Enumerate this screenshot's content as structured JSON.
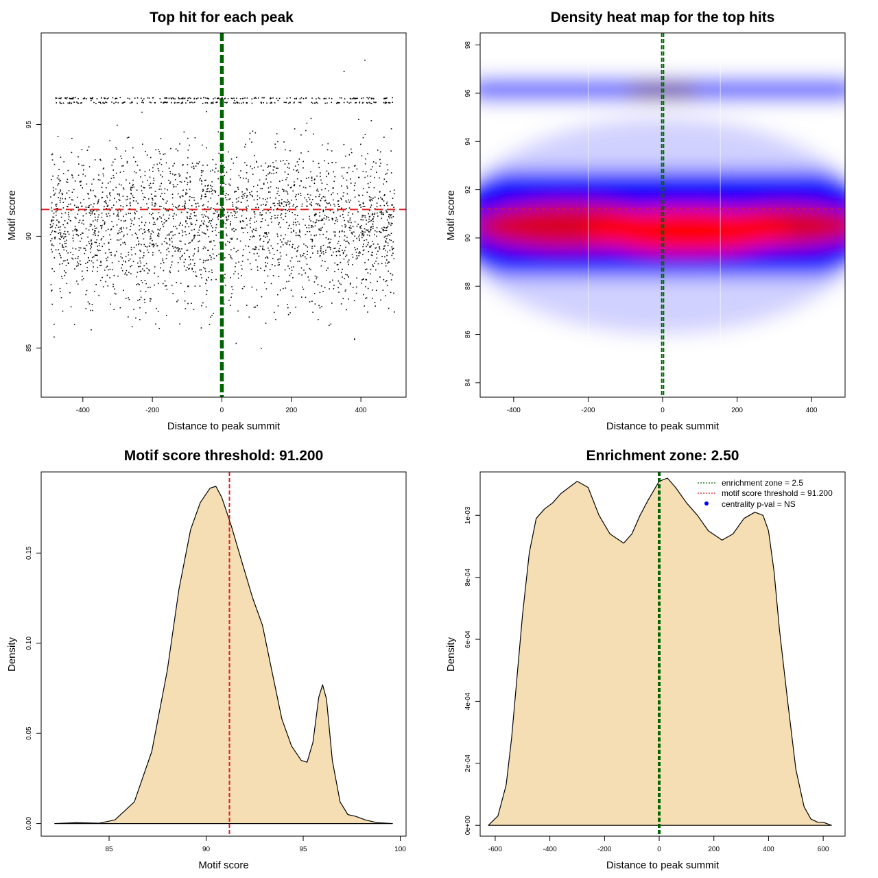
{
  "colors": {
    "density_fill": "#f5deb3",
    "threshold_line": "#e02020",
    "zone_line": "#006400",
    "heat_low": "#ffffff",
    "heat_mid": "#0000ff",
    "heat_high": "#ff0000",
    "points": "#000000",
    "legend_dot": "#0000ff"
  },
  "chart_data": [
    {
      "id": "scatter",
      "type": "scatter",
      "title": "Top hit for each peak",
      "xlabel": "Distance to peak summit",
      "ylabel": "Motif score",
      "xlim": [
        -520,
        530
      ],
      "ylim": [
        82.8,
        99.1
      ],
      "xticks": [
        -400,
        -200,
        0,
        200,
        400
      ],
      "xtick_labels": [
        "-400",
        "-200",
        "0",
        "200",
        "400"
      ],
      "yticks": [
        85,
        90,
        95
      ],
      "ytick_labels": [
        "85",
        "90",
        "95"
      ],
      "hlines": [
        {
          "y": 91.2,
          "color": "threshold"
        }
      ],
      "vlines": [
        {
          "x": -2.5,
          "color": "zone"
        },
        {
          "x": 2.5,
          "color": "zone"
        }
      ],
      "point_sample": {
        "x": [
          -480,
          -452,
          -430,
          -401,
          -372,
          -350,
          -318,
          -290,
          -262,
          -240,
          -205,
          -180,
          -150,
          -122,
          -95,
          -70,
          -40,
          -12,
          15,
          42,
          70,
          98,
          125,
          150,
          180,
          205,
          238,
          262,
          290,
          318,
          345,
          370,
          400,
          428,
          455,
          482,
          -470,
          -440,
          -405,
          -378,
          -338,
          -300,
          -272,
          -230,
          -195,
          -160,
          -130,
          -100,
          -62,
          -30,
          8,
          35,
          60,
          92,
          118,
          160,
          195,
          228,
          255,
          285,
          312,
          350,
          380,
          410,
          440,
          470
        ],
        "y": [
          90.4,
          91.7,
          89.2,
          92.8,
          90.1,
          88.9,
          91.3,
          93.5,
          90.6,
          89.7,
          92.2,
          90.9,
          88.4,
          91.8,
          94.1,
          90.2,
          89.4,
          92.6,
          91.1,
          89.9,
          93.2,
          90.7,
          88.7,
          91.5,
          92.9,
          90.3,
          89.1,
          94.6,
          91.2,
          90.8,
          88.2,
          92.4,
          90.5,
          89.6,
          93.8,
          91.0,
          96.2,
          96.2,
          96.0,
          96.1,
          96.2,
          96.0,
          96.2,
          96.1,
          96.0,
          96.2,
          96.0,
          96.1,
          96.2,
          96.0,
          96.2,
          96.1,
          96.0,
          96.2,
          96.0,
          96.1,
          86.6,
          87.3,
          95.3,
          87.8,
          86.1,
          97.4,
          85.4,
          97.9,
          86.9,
          88.0
        ]
      }
    },
    {
      "id": "heatmap",
      "type": "heatmap",
      "title": "Density heat map for the top hits",
      "xlabel": "Distance to peak summit",
      "ylabel": "Motif score",
      "xlim": [
        -490,
        490
      ],
      "ylim": [
        83.4,
        98.5
      ],
      "xticks": [
        -400,
        -200,
        0,
        200,
        400
      ],
      "xtick_labels": [
        "-400",
        "-200",
        "0",
        "200",
        "400"
      ],
      "yticks": [
        84,
        86,
        88,
        90,
        92,
        94,
        96,
        98
      ],
      "ytick_labels": [
        "84",
        "86",
        "88",
        "90",
        "92",
        "94",
        "96",
        "98"
      ],
      "hlines": [
        {
          "y": 91.2,
          "color": "threshold"
        }
      ],
      "vlines": [
        {
          "x": -2.5,
          "color": "zone"
        },
        {
          "x": 2.5,
          "color": "zone"
        }
      ]
    },
    {
      "id": "score-density",
      "type": "area",
      "title": "Motif score threshold: 91.200",
      "xlabel": "Motif score",
      "ylabel": "Density",
      "xlim": [
        81.5,
        100.3
      ],
      "ylim": [
        -0.007,
        0.195
      ],
      "xticks": [
        85,
        90,
        95,
        100
      ],
      "xtick_labels": [
        "85",
        "90",
        "95",
        "100"
      ],
      "yticks": [
        0,
        0.05,
        0.1,
        0.15
      ],
      "ytick_labels": [
        "0.00",
        "0.05",
        "0.10",
        "0.15"
      ],
      "vlines": [
        {
          "x": 91.2,
          "color": "threshold"
        }
      ],
      "x": [
        82.2,
        83.3,
        84.5,
        85.3,
        86.3,
        87.2,
        88.0,
        88.6,
        89.2,
        89.7,
        90.2,
        90.5,
        90.8,
        91.3,
        91.9,
        92.4,
        92.9,
        93.4,
        93.9,
        94.4,
        94.9,
        95.2,
        95.5,
        95.8,
        96.0,
        96.2,
        96.5,
        96.9,
        97.3,
        97.7,
        98.2,
        98.8,
        99.6
      ],
      "y": [
        0.0,
        0.0005,
        0.0002,
        0.002,
        0.012,
        0.04,
        0.085,
        0.13,
        0.163,
        0.178,
        0.186,
        0.187,
        0.181,
        0.165,
        0.143,
        0.125,
        0.11,
        0.084,
        0.058,
        0.043,
        0.035,
        0.034,
        0.045,
        0.07,
        0.077,
        0.069,
        0.035,
        0.012,
        0.005,
        0.004,
        0.002,
        0.0005,
        0.0
      ]
    },
    {
      "id": "distance-density",
      "type": "area",
      "title": "Enrichment zone: 2.50",
      "xlabel": "Distance to peak summit",
      "ylabel": "Density",
      "xlim": [
        -655,
        680
      ],
      "ylim": [
        -3.5e-05,
        0.00114
      ],
      "xticks": [
        -600,
        -400,
        -200,
        0,
        200,
        400,
        600
      ],
      "xtick_labels": [
        "-600",
        "-400",
        "-200",
        "0",
        "200",
        "400",
        "600"
      ],
      "yticks": [
        0,
        0.0002,
        0.0004,
        0.0006,
        0.0008,
        0.001
      ],
      "ytick_labels": [
        "0e+00",
        "2e-04",
        "4e-04",
        "6e-04",
        "8e-04",
        "1e-03"
      ],
      "vlines": [
        {
          "x": -2.5,
          "color": "zone"
        },
        {
          "x": 2.5,
          "color": "zone"
        }
      ],
      "x": [
        -625,
        -590,
        -560,
        -540,
        -520,
        -500,
        -475,
        -450,
        -420,
        -390,
        -360,
        -300,
        -260,
        -220,
        -180,
        -130,
        -100,
        -70,
        -40,
        0,
        30,
        60,
        100,
        140,
        180,
        230,
        270,
        310,
        350,
        380,
        400,
        420,
        440,
        470,
        500,
        530,
        555,
        580,
        600,
        630
      ],
      "y": [
        0.0,
        3e-05,
        0.00013,
        0.00028,
        0.00048,
        0.00068,
        0.00088,
        0.00099,
        0.00102,
        0.00104,
        0.00107,
        0.00111,
        0.00109,
        0.001,
        0.00094,
        0.00091,
        0.00094,
        0.001,
        0.00105,
        0.00111,
        0.00112,
        0.00109,
        0.00104,
        0.001,
        0.00095,
        0.00092,
        0.00094,
        0.00099,
        0.00101,
        0.001,
        0.00095,
        0.00082,
        0.00063,
        0.0004,
        0.00018,
        6e-05,
        2e-05,
        1e-05,
        1e-05,
        0.0
      ]
    }
  ],
  "legend": {
    "items": [
      {
        "label": "enrichment zone = 2.5",
        "kind": "dotted-line",
        "color": "zone"
      },
      {
        "label": "motif score threshold = 91.200",
        "kind": "dotted-line",
        "color": "threshold"
      },
      {
        "label": "centrality p-val = NS",
        "kind": "dot",
        "color": "legend_dot"
      }
    ]
  }
}
